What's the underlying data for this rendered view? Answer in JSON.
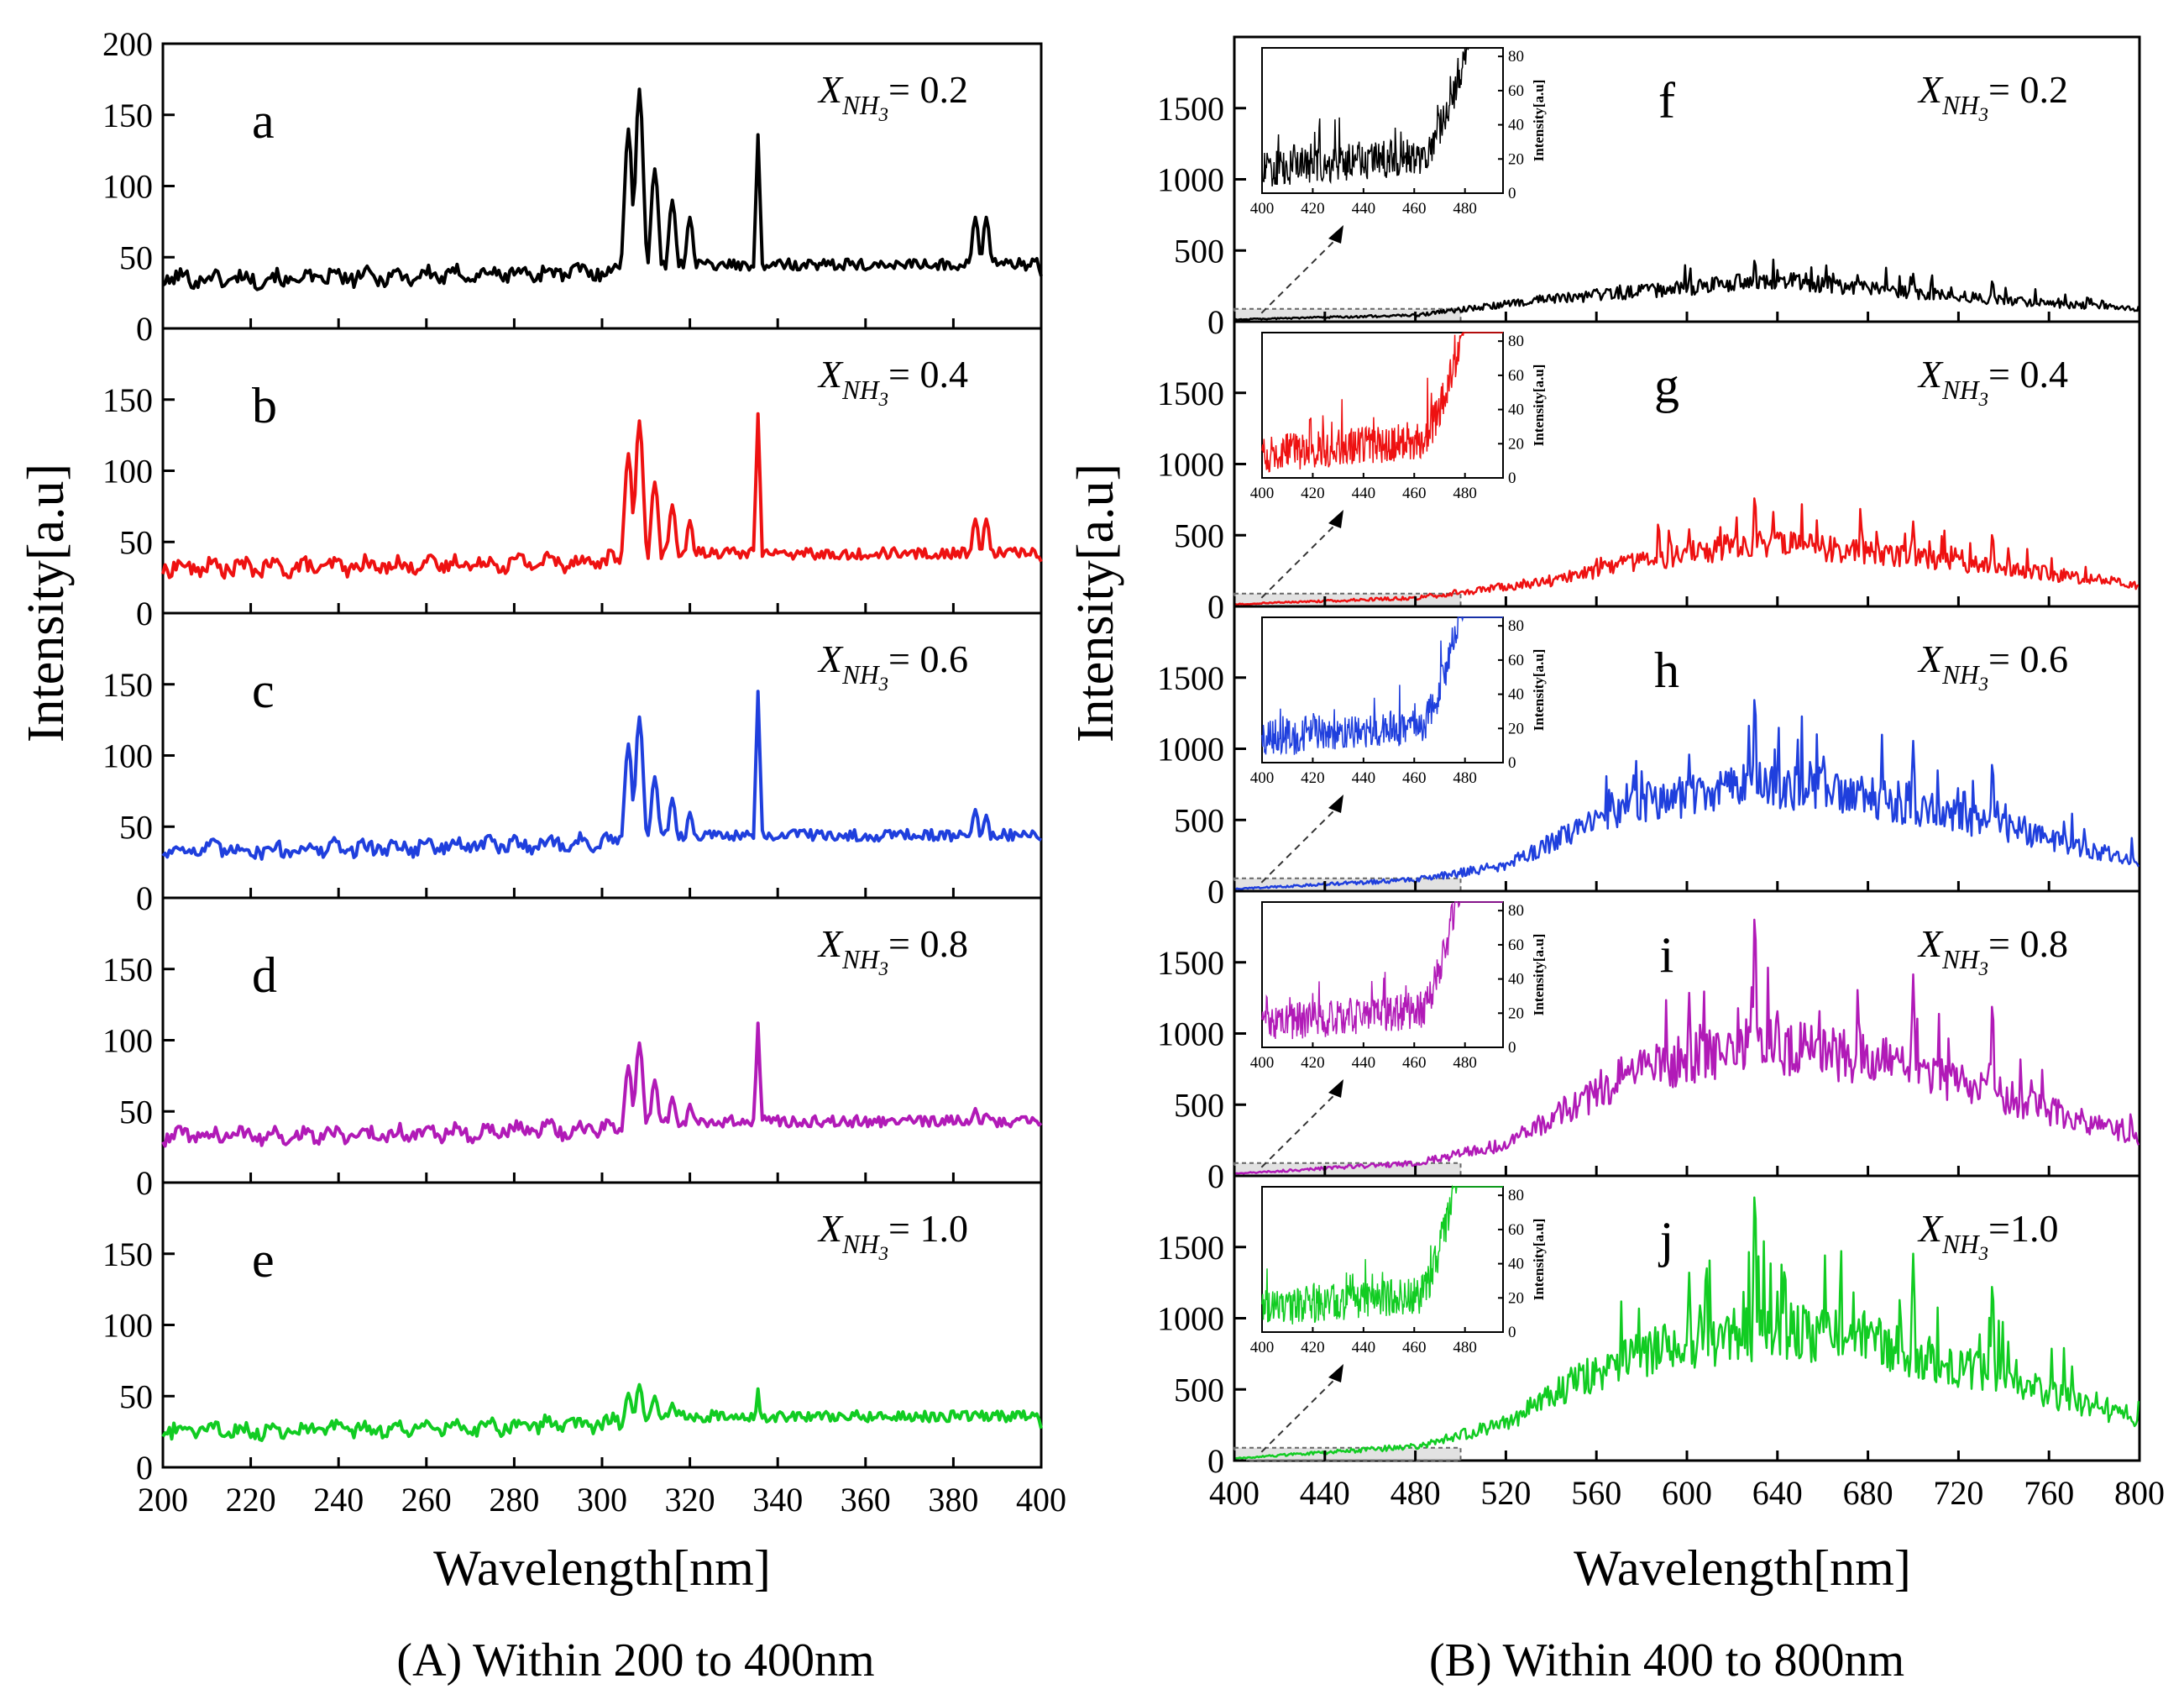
{
  "figure": {
    "caption_left": "(A) Within 200 to 400nm",
    "caption_right": "(B) Within 400 to 800nm",
    "ylabel": "Intensity[a.u]",
    "xlabel": "Wavelength[nm]",
    "inset_ylabel": "Intensity[a.u]",
    "frac_prefix": "X",
    "frac_sub": "NH",
    "frac_subsub": "3"
  },
  "chart_data": [
    {
      "type": "line",
      "panel": "A",
      "xlim": [
        200,
        400
      ],
      "ylim": [
        0,
        200
      ],
      "x_ticks": [
        200,
        220,
        240,
        260,
        280,
        300,
        320,
        340,
        360,
        380,
        400
      ],
      "y_ticks_first": [
        0,
        50,
        100,
        150,
        200
      ],
      "y_ticks": [
        0,
        50,
        100,
        150
      ],
      "series": [
        {
          "label": "a",
          "fraction": "= 0.2",
          "color": "#000000",
          "baseline": 35,
          "peaks": [
            [
              306,
              140
            ],
            [
              308.5,
              168
            ],
            [
              312,
              112
            ],
            [
              316,
              90
            ],
            [
              320,
              78
            ],
            [
              335.5,
              136
            ],
            [
              385,
              78
            ],
            [
              387.5,
              78
            ]
          ]
        },
        {
          "label": "b",
          "fraction": "= 0.4",
          "color": "#ee1111",
          "baseline": 32,
          "peaks": [
            [
              306,
              112
            ],
            [
              308.5,
              135
            ],
            [
              312,
              92
            ],
            [
              316,
              76
            ],
            [
              320,
              65
            ],
            [
              335.5,
              140
            ],
            [
              385,
              66
            ],
            [
              387.5,
              66
            ]
          ]
        },
        {
          "label": "c",
          "fraction": "= 0.6",
          "color": "#1f3fdd",
          "baseline": 34,
          "peaks": [
            [
              306,
              108
            ],
            [
              308.5,
              127
            ],
            [
              312,
              85
            ],
            [
              316,
              70
            ],
            [
              320,
              60
            ],
            [
              335.5,
              145
            ],
            [
              385,
              62
            ],
            [
              387.5,
              58
            ]
          ]
        },
        {
          "label": "d",
          "fraction": "= 0.8",
          "color": "#b11ab7",
          "baseline": 33,
          "peaks": [
            [
              306,
              82
            ],
            [
              308.5,
              98
            ],
            [
              312,
              72
            ],
            [
              316,
              60
            ],
            [
              320,
              55
            ],
            [
              335.5,
              112
            ],
            [
              385,
              52
            ],
            [
              387.5,
              48
            ]
          ]
        },
        {
          "label": "e",
          "fraction": "= 1.0",
          "color": "#11cc22",
          "baseline": 26,
          "peaks": [
            [
              306,
              52
            ],
            [
              308.5,
              58
            ],
            [
              312,
              50
            ],
            [
              316,
              45
            ],
            [
              335.5,
              55
            ],
            [
              385,
              36
            ]
          ]
        }
      ]
    },
    {
      "type": "line",
      "panel": "B",
      "xlim": [
        400,
        800
      ],
      "ylim": [
        0,
        2000
      ],
      "x_ticks": [
        400,
        440,
        480,
        520,
        560,
        600,
        640,
        680,
        720,
        760,
        800
      ],
      "y_ticks": [
        0,
        500,
        1000,
        1500
      ],
      "inset": {
        "xlim": [
          400,
          495
        ],
        "ylim": [
          0,
          85
        ],
        "x_ticks": [
          400,
          420,
          440,
          460,
          480
        ],
        "y_ticks": [
          0,
          20,
          40,
          60,
          80
        ]
      },
      "series": [
        {
          "label": "f",
          "fraction": "= 0.2",
          "color": "#000000",
          "peak_max": 440,
          "envelope": [
            [
              400,
              15
            ],
            [
              480,
              45
            ],
            [
              540,
              160
            ],
            [
              600,
              240
            ],
            [
              640,
              300
            ],
            [
              680,
              230
            ],
            [
              740,
              150
            ],
            [
              800,
              90
            ]
          ]
        },
        {
          "label": "g",
          "fraction": "= 0.4",
          "color": "#ee1111",
          "peak_max": 780,
          "envelope": [
            [
              400,
              15
            ],
            [
              480,
              60
            ],
            [
              540,
              180
            ],
            [
              580,
              320
            ],
            [
              620,
              420
            ],
            [
              640,
              440
            ],
            [
              680,
              380
            ],
            [
              740,
              270
            ],
            [
              800,
              150
            ]
          ]
        },
        {
          "label": "h",
          "fraction": "= 0.6",
          "color": "#1f3fdd",
          "peak_max": 1380,
          "envelope": [
            [
              400,
              15
            ],
            [
              480,
              80
            ],
            [
              520,
              180
            ],
            [
              550,
              420
            ],
            [
              580,
              620
            ],
            [
              620,
              720
            ],
            [
              640,
              750
            ],
            [
              680,
              660
            ],
            [
              740,
              450
            ],
            [
              800,
              200
            ]
          ]
        },
        {
          "label": "i",
          "fraction": "= 0.8",
          "color": "#b11ab7",
          "peak_max": 1850,
          "envelope": [
            [
              400,
              15
            ],
            [
              480,
              90
            ],
            [
              520,
              220
            ],
            [
              550,
              500
            ],
            [
              580,
              750
            ],
            [
              620,
              880
            ],
            [
              640,
              900
            ],
            [
              680,
              820
            ],
            [
              740,
              560
            ],
            [
              800,
              260
            ]
          ]
        },
        {
          "label": "j",
          "fraction": "=1.0",
          "color": "#11cc22",
          "peak_max": 1900,
          "envelope": [
            [
              400,
              15
            ],
            [
              480,
              100
            ],
            [
              520,
              260
            ],
            [
              550,
              550
            ],
            [
              580,
              750
            ],
            [
              620,
              880
            ],
            [
              640,
              920
            ],
            [
              680,
              840
            ],
            [
              740,
              580
            ],
            [
              800,
              260
            ]
          ]
        }
      ]
    }
  ]
}
